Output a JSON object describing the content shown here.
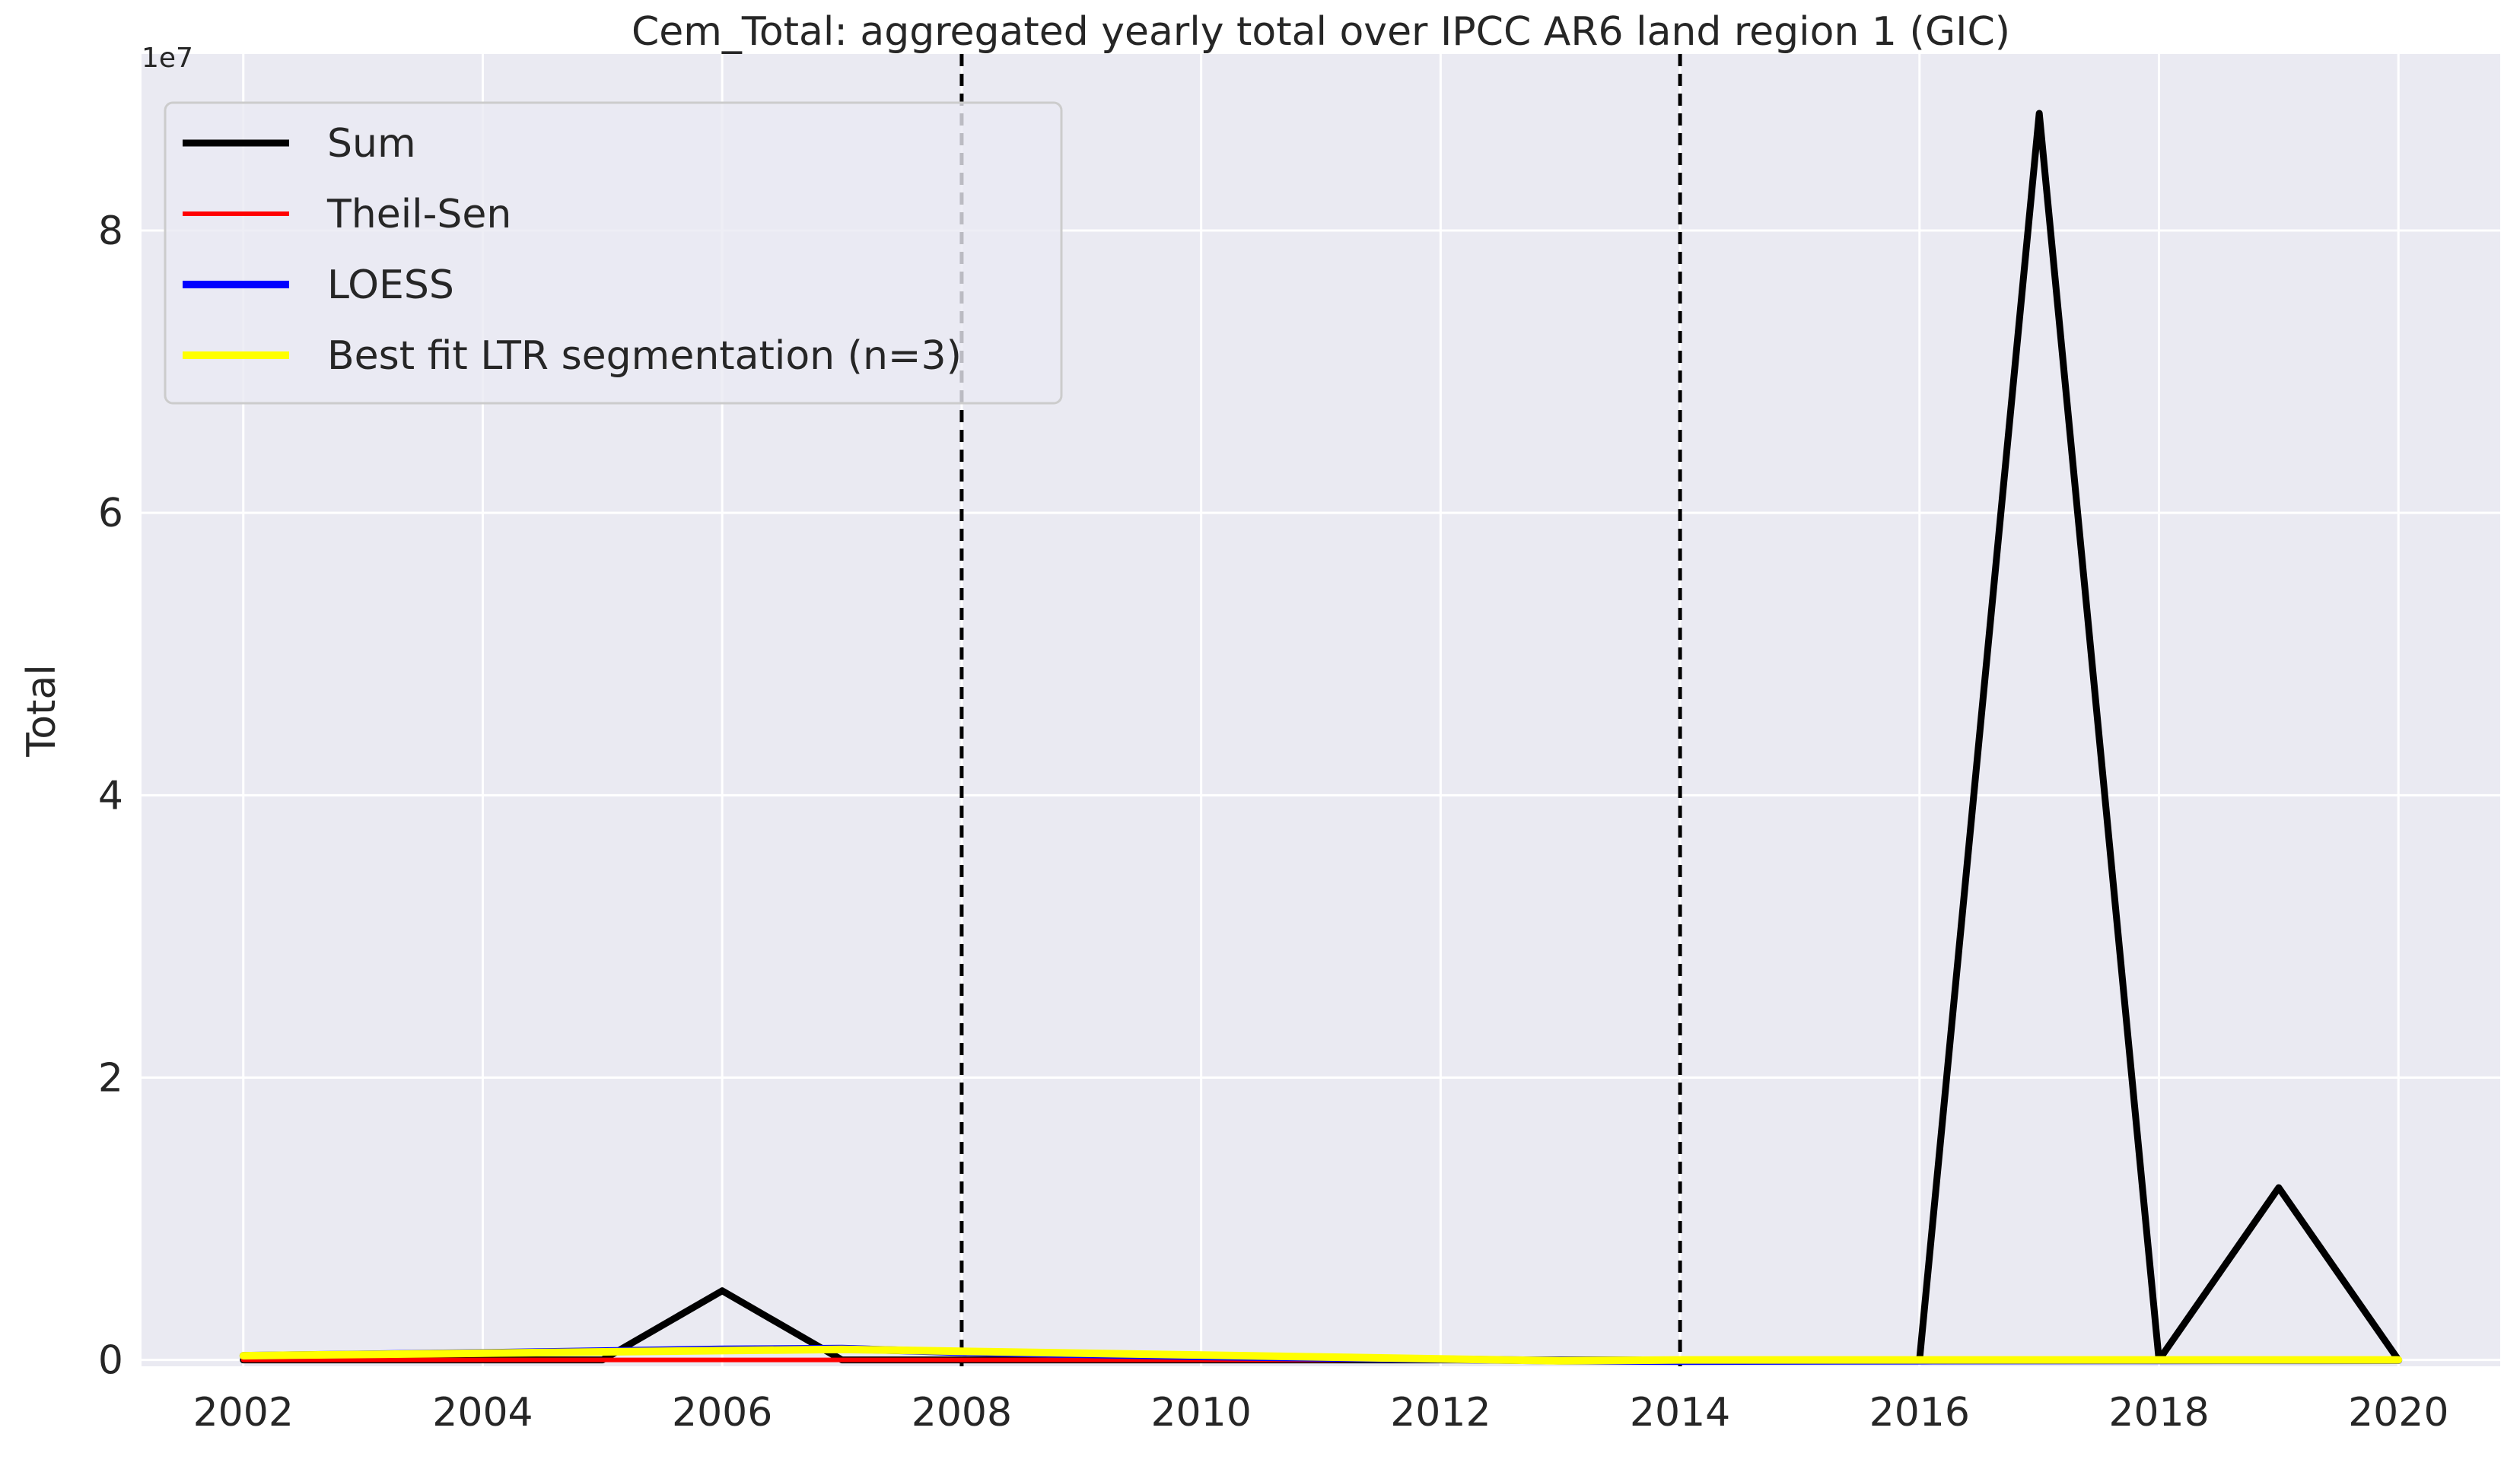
{
  "chart_data": {
    "type": "line",
    "title": "Cem_Total: aggregated yearly total over IPCC AR6 land region 1 (GIC)",
    "xlabel": "",
    "ylabel": "Total",
    "y_offset_label": "1e7",
    "xlim": [
      2001.15,
      2020.85
    ],
    "ylim": [
      -450000,
      92500000
    ],
    "x_ticks": [
      2002,
      2004,
      2006,
      2008,
      2010,
      2012,
      2014,
      2016,
      2018,
      2020
    ],
    "x_tick_labels": [
      "2002",
      "2004",
      "2006",
      "2008",
      "2010",
      "2012",
      "2014",
      "2016",
      "2018",
      "2020"
    ],
    "y_ticks": [
      0,
      20000000,
      40000000,
      60000000,
      80000000
    ],
    "y_tick_labels": [
      "0",
      "2",
      "4",
      "6",
      "8"
    ],
    "grid": true,
    "background": "#eaeaf2",
    "legend_position": "top-left",
    "vertical_lines": [
      2008,
      2014
    ],
    "series": [
      {
        "name": "Sum",
        "color": "#000000",
        "x": [
          2002,
          2003,
          2004,
          2005,
          2006,
          2007,
          2008,
          2009,
          2010,
          2011,
          2012,
          2013,
          2014,
          2015,
          2016,
          2017,
          2018,
          2019,
          2020
        ],
        "y": [
          0,
          0,
          0,
          0,
          4900000,
          0,
          0,
          0,
          0,
          0,
          0,
          0,
          0,
          0,
          0,
          88300000,
          0,
          12200000,
          0
        ]
      },
      {
        "name": "Theil-Sen",
        "color": "#ff0000",
        "x": [
          2002,
          2020
        ],
        "y": [
          0,
          0
        ]
      },
      {
        "name": "LOESS",
        "color": "#0000ff",
        "x": [
          2002,
          2004,
          2006,
          2007,
          2008,
          2010,
          2012,
          2013,
          2014,
          2016,
          2018,
          2020
        ],
        "y": [
          300000,
          500000,
          750000,
          800000,
          550000,
          250000,
          50000,
          -50000,
          -80000,
          -50000,
          -30000,
          -20000
        ]
      },
      {
        "name": "Best fit LTR segmentation (n=3)",
        "color": "#ffff00",
        "x": [
          2002,
          2007,
          2013,
          2014,
          2020
        ],
        "y": [
          300000,
          750000,
          -60000,
          0,
          0
        ]
      }
    ]
  }
}
